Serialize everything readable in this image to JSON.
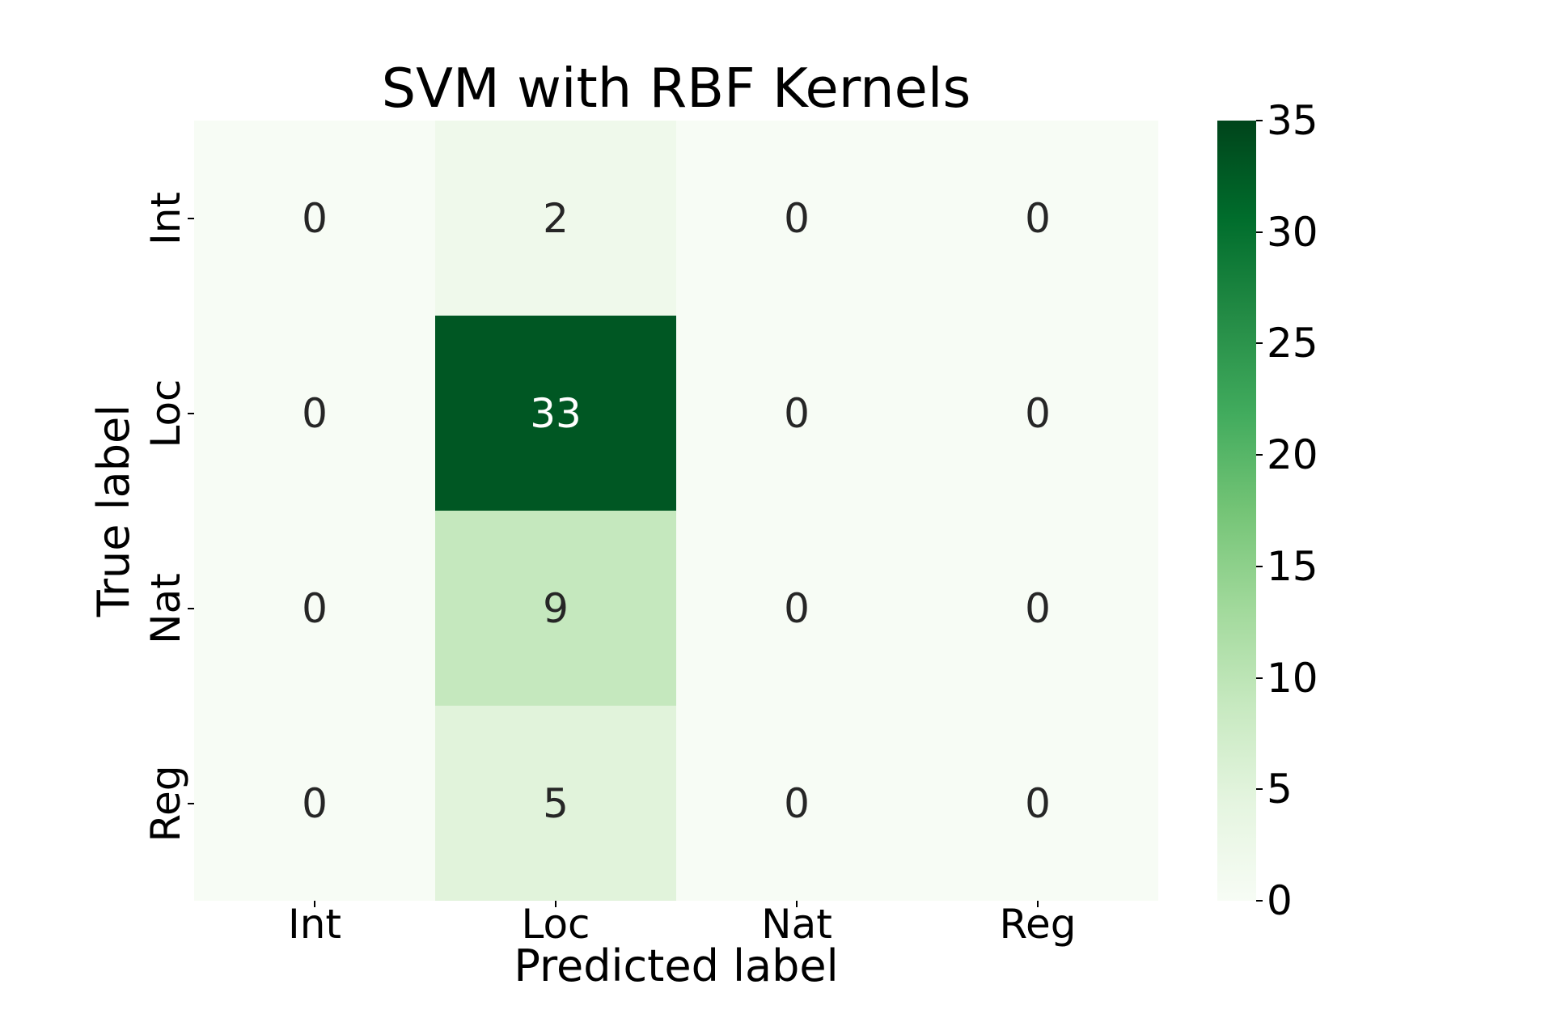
{
  "title": "SVM with RBF Kernels",
  "chart_data": {
    "type": "heatmap",
    "title": "SVM with RBF Kernels",
    "xlabel": "Predicted label",
    "ylabel": "True label",
    "x_categories": [
      "Int",
      "Loc",
      "Nat",
      "Reg"
    ],
    "y_categories": [
      "Int",
      "Loc",
      "Nat",
      "Reg"
    ],
    "rows": [
      [
        0,
        2,
        0,
        0
      ],
      [
        0,
        33,
        0,
        0
      ],
      [
        0,
        9,
        0,
        0
      ],
      [
        0,
        5,
        0,
        0
      ]
    ],
    "vmin": 0,
    "vmax": 35,
    "colormap": "Greens",
    "colorbar_ticks": [
      0,
      5,
      10,
      15,
      20,
      25,
      30,
      35
    ],
    "colorbar_position": "right",
    "grid": false,
    "annotations_shown": true
  },
  "colors": {
    "background": "#ffffff",
    "axis_text": "#000000",
    "annotation_dark": "#262626",
    "annotation_light": "#ffffff",
    "colormap_stops": [
      {
        "t": 0.0,
        "hex": "#f7fcf5"
      },
      {
        "t": 0.125,
        "hex": "#e5f5e0"
      },
      {
        "t": 0.25,
        "hex": "#c7e9c0"
      },
      {
        "t": 0.375,
        "hex": "#a1d99b"
      },
      {
        "t": 0.5,
        "hex": "#74c476"
      },
      {
        "t": 0.625,
        "hex": "#41ab5d"
      },
      {
        "t": 0.75,
        "hex": "#238b45"
      },
      {
        "t": 0.875,
        "hex": "#006d2c"
      },
      {
        "t": 1.0,
        "hex": "#00441b"
      }
    ]
  }
}
